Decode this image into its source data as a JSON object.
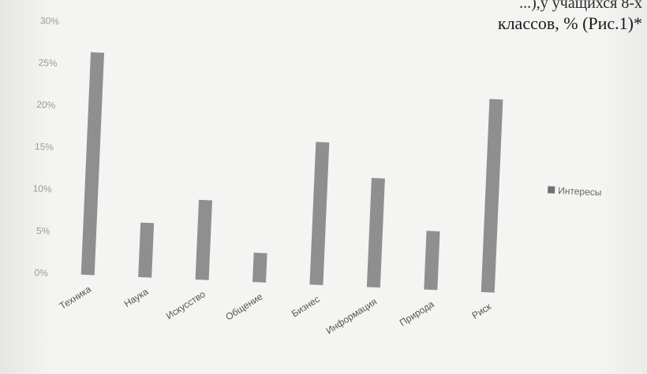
{
  "header": {
    "line1": "...),у учащихся 8-х",
    "line2": "классов, % (Рис.1)*"
  },
  "chart_data": {
    "type": "bar",
    "categories": [
      "Техника",
      "Наука",
      "Искусство",
      "Общение",
      "Бизнес",
      "Информация",
      "Природа",
      "Риск"
    ],
    "series": [
      {
        "name": "Интересы",
        "values": [
          26.5,
          6.5,
          9.5,
          3.5,
          17,
          13,
          7,
          23
        ]
      }
    ],
    "y_ticks": [
      "0%",
      "5%",
      "10%",
      "15%",
      "20%",
      "25%",
      "30%"
    ],
    "ylim": [
      0,
      30
    ],
    "grid": false,
    "legend_position": "right",
    "colors": {
      "bar": "#8f8f8f",
      "text": "#9a9a9a",
      "legend_marker": "#707070"
    }
  }
}
